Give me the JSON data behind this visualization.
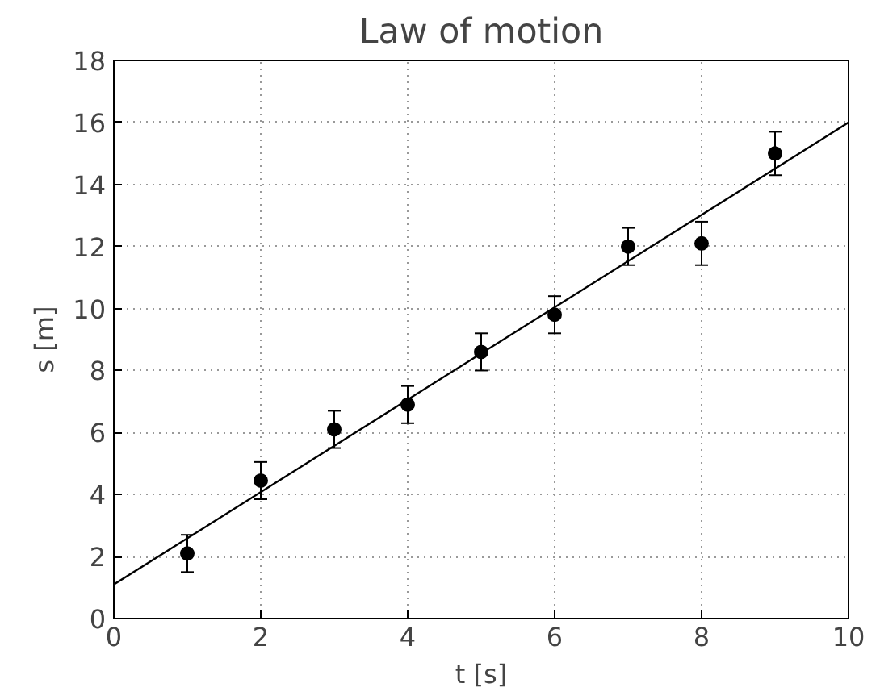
{
  "chart_data": {
    "type": "scatter",
    "title": "Law of motion",
    "xlabel": "t [s]",
    "ylabel": "s [m]",
    "x": [
      1,
      2,
      3,
      4,
      5,
      6,
      7,
      8,
      9
    ],
    "series": [
      {
        "color": "#000000",
        "marker": "circle",
        "values": [
          2.1,
          4.45,
          6.1,
          6.9,
          8.6,
          9.8,
          12.0,
          12.1,
          15.0
        ],
        "errors": [
          0.6,
          0.6,
          0.6,
          0.6,
          0.6,
          0.6,
          0.6,
          0.7,
          0.7
        ]
      },
      {
        "type": "line",
        "marker": "none",
        "color": "#000000",
        "x": [
          0,
          10
        ],
        "values": [
          1.1,
          16.0
        ]
      }
    ],
    "xlim": [
      0,
      10
    ],
    "ylim": [
      0,
      18
    ],
    "xticks": [
      0,
      2,
      4,
      6,
      8,
      10
    ],
    "yticks": [
      0,
      2,
      4,
      6,
      8,
      10,
      12,
      14,
      16,
      18
    ],
    "grid": true,
    "line_style": "solid"
  }
}
